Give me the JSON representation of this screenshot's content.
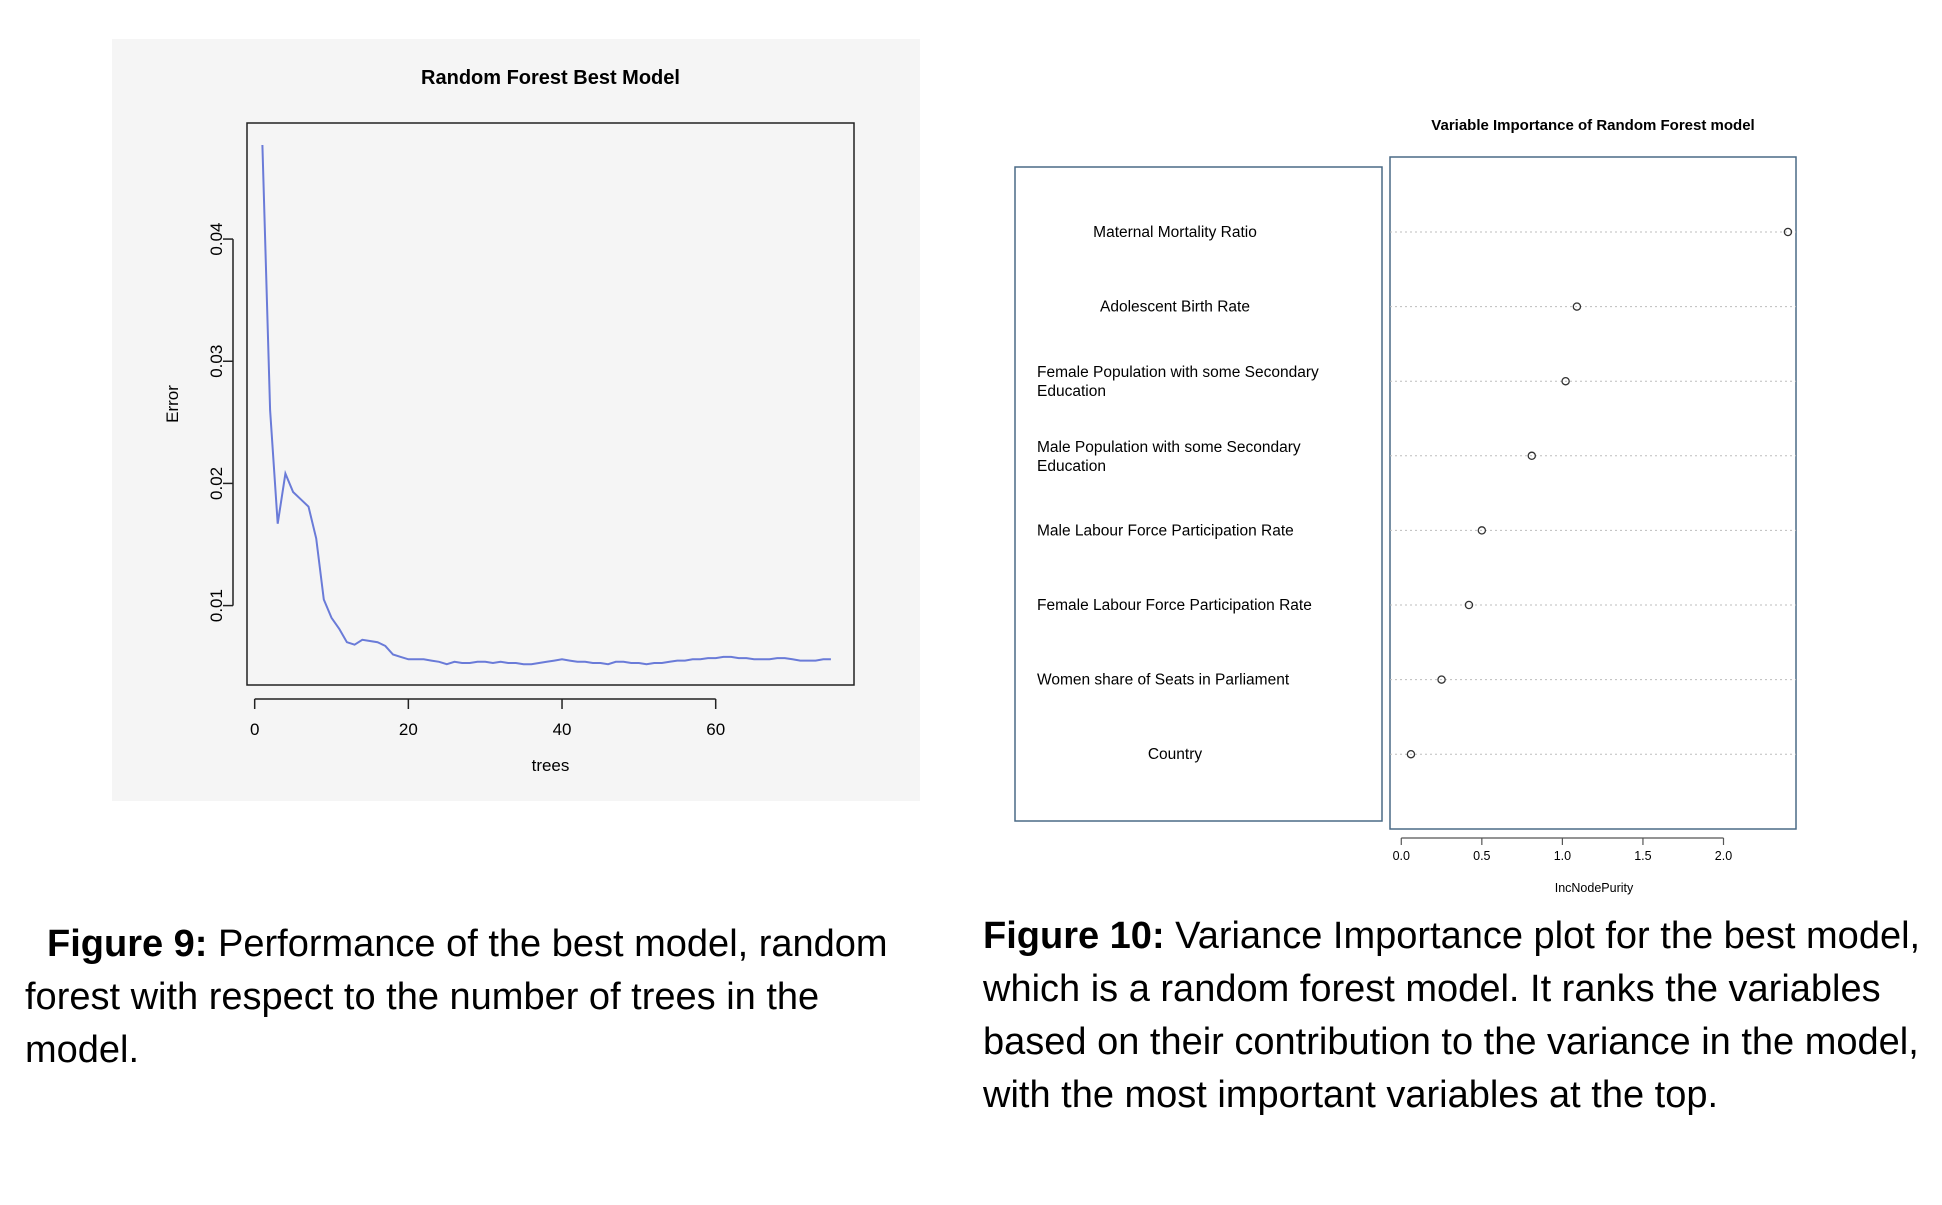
{
  "figures": [
    {
      "caption_label": "Figure 9:",
      "caption_text": " Performance of the best model, random forest with respect to the number of trees in the model.",
      "chart_data": {
        "type": "line",
        "title": "Random Forest Best Model",
        "xlabel": "trees",
        "ylabel": "Error",
        "xlim": [
          -1,
          78
        ],
        "ylim": [
          0.0035,
          0.0495
        ],
        "x_ticks": [
          0,
          20,
          40,
          60
        ],
        "y_ticks": [
          0.01,
          0.02,
          0.03,
          0.04
        ],
        "x_tick_labels": [
          "0",
          "20",
          "40",
          "60"
        ],
        "y_tick_labels": [
          "0.01",
          "0.02",
          "0.03",
          "0.04"
        ],
        "series_color": "#6a7bd8",
        "grid": false,
        "series": [
          {
            "x": [
              1,
              2,
              3,
              4,
              5,
              6,
              7,
              8,
              9,
              10,
              11,
              12,
              13,
              14,
              15,
              16,
              17,
              18,
              19,
              20,
              21,
              22,
              23,
              24,
              25,
              26,
              27,
              28,
              29,
              30,
              31,
              32,
              33,
              34,
              35,
              36,
              37,
              38,
              39,
              40,
              41,
              42,
              43,
              44,
              45,
              46,
              47,
              48,
              49,
              50,
              51,
              52,
              53,
              54,
              55,
              56,
              57,
              58,
              59,
              60,
              61,
              62,
              63,
              64,
              65,
              66,
              67,
              68,
              69,
              70,
              71,
              72,
              73,
              74,
              75
            ],
            "values": [
              0.0477,
              0.026,
              0.0167,
              0.0208,
              0.0193,
              0.0187,
              0.0181,
              0.0155,
              0.0105,
              0.009,
              0.0081,
              0.007,
              0.0068,
              0.0072,
              0.0071,
              0.007,
              0.0067,
              0.006,
              0.0058,
              0.0056,
              0.0056,
              0.0056,
              0.0055,
              0.0054,
              0.0052,
              0.0054,
              0.0053,
              0.0053,
              0.0054,
              0.0054,
              0.0053,
              0.0054,
              0.0053,
              0.0053,
              0.0052,
              0.0052,
              0.0053,
              0.0054,
              0.0055,
              0.0056,
              0.0055,
              0.0054,
              0.0054,
              0.0053,
              0.0053,
              0.0052,
              0.0054,
              0.0054,
              0.0053,
              0.0053,
              0.0052,
              0.0053,
              0.0053,
              0.0054,
              0.0055,
              0.0055,
              0.0056,
              0.0056,
              0.0057,
              0.0057,
              0.0058,
              0.0058,
              0.0057,
              0.0057,
              0.0056,
              0.0056,
              0.0056,
              0.0057,
              0.0057,
              0.0056,
              0.0055,
              0.0055,
              0.0055,
              0.0056,
              0.0056
            ]
          }
        ]
      }
    },
    {
      "caption_label": "Figure 10:",
      "caption_text": " Variance Importance plot for the best model, which is a random forest model. It ranks the variables based on their contribution to the variance in the model, with the most important variables at the top.",
      "chart_data": {
        "type": "scatter",
        "title": "Variable Importance of Random Forest model",
        "xlabel": "IncNodePurity",
        "xlim": [
          -0.07,
          2.45
        ],
        "x_ticks": [
          0.0,
          0.5,
          1.0,
          1.5,
          2.0
        ],
        "x_tick_labels": [
          "0.0",
          "0.5",
          "1.0",
          "1.5",
          "2.0"
        ],
        "grid": "horizontal dotted",
        "categories": [
          [
            "Maternal Mortality Ratio"
          ],
          [
            "Adolescent Birth Rate"
          ],
          [
            "Female Population with some Secondary",
            "Education"
          ],
          [
            "Male Population with some Secondary",
            "Education"
          ],
          [
            "Male Labour Force Participation Rate"
          ],
          [
            "Female Labour Force Participation Rate"
          ],
          [
            "Women share of Seats in Parliament"
          ],
          [
            "Country"
          ]
        ],
        "label_align": [
          "center",
          "center",
          "left",
          "left",
          "left",
          "left",
          "left",
          "center"
        ],
        "values": [
          2.4,
          1.09,
          1.02,
          0.81,
          0.5,
          0.42,
          0.25,
          0.06
        ]
      }
    }
  ]
}
